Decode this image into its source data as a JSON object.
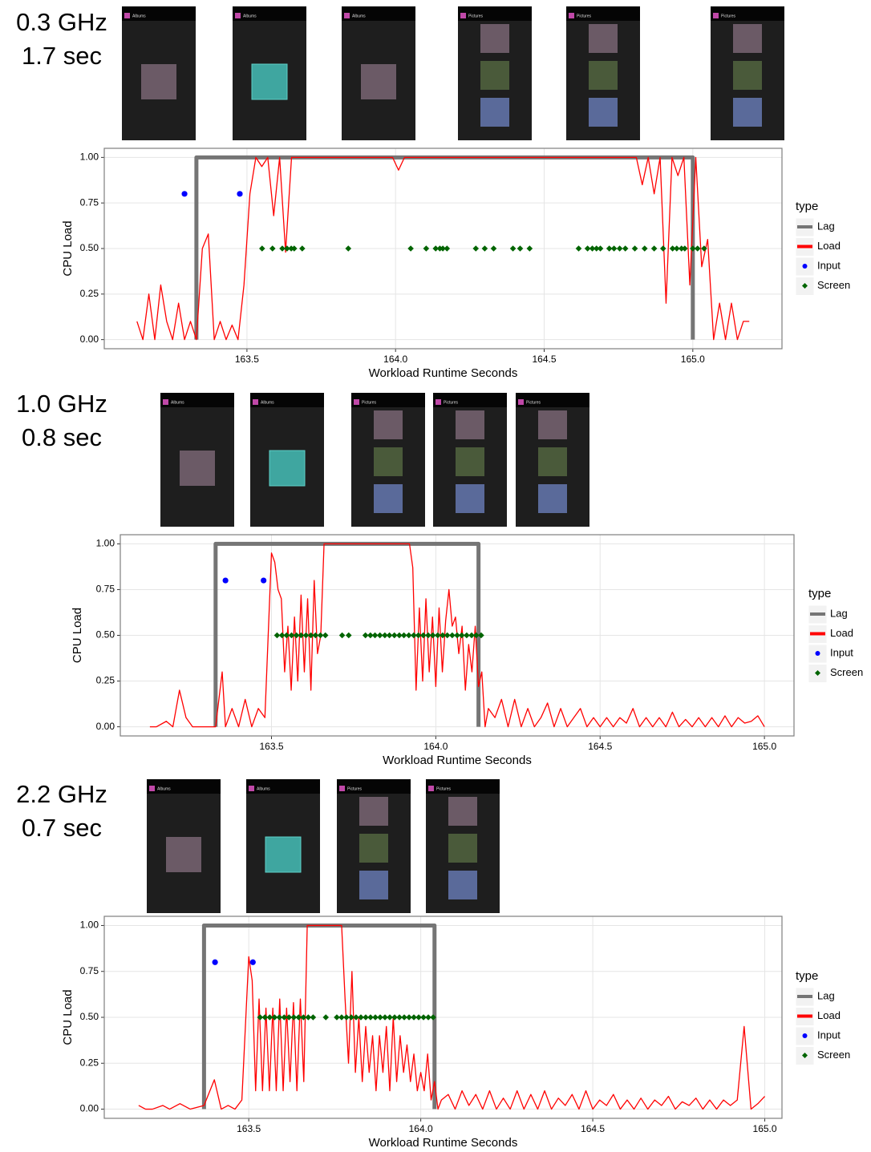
{
  "chart_data": [
    {
      "type": "line",
      "title": "0.3 GHz",
      "subtitle": "1.7 sec",
      "screens": [
        "Albums",
        "Albums",
        "Albums",
        "Pictures",
        "Pictures",
        "Pictures"
      ],
      "xlabel": "Workload Runtime Seconds",
      "ylabel": "CPU Load",
      "legend_title": "type",
      "grid": true,
      "xlim": [
        163.02,
        165.3
      ],
      "ylim": [
        -0.05,
        1.05
      ],
      "xticks": [
        163.5,
        {
          "value": 164,
          "label": "164.0"
        },
        164.5,
        {
          "value": 165,
          "label": "165.0"
        }
      ],
      "yticks": [
        {
          "value": 0,
          "label": "0.00"
        },
        {
          "value": 0.25,
          "label": "0.25"
        },
        {
          "value": 0.5,
          "label": "0.50"
        },
        {
          "value": 0.75,
          "label": "0.75"
        },
        {
          "value": 1,
          "label": "1.00"
        }
      ],
      "series": [
        {
          "name": "Lag",
          "color": "#757575",
          "shape": "line",
          "x": [
            163.33,
            163.33,
            165.0,
            165.0
          ],
          "values": [
            0,
            1,
            1,
            0
          ]
        },
        {
          "name": "Load",
          "color": "#ff0000",
          "shape": "line",
          "x": [
            163.13,
            163.15,
            163.17,
            163.19,
            163.21,
            163.23,
            163.25,
            163.27,
            163.29,
            163.31,
            163.33,
            163.35,
            163.37,
            163.39,
            163.41,
            163.43,
            163.45,
            163.47,
            163.49,
            163.51,
            163.53,
            163.55,
            163.57,
            163.59,
            163.61,
            163.63,
            163.65,
            163.67,
            163.99,
            164.01,
            164.03,
            164.81,
            164.83,
            164.85,
            164.87,
            164.89,
            164.91,
            164.93,
            164.95,
            164.97,
            164.99,
            165.01,
            165.03,
            165.05,
            165.07,
            165.09,
            165.11,
            165.13,
            165.15,
            165.17,
            165.19
          ],
          "values": [
            0.1,
            0,
            0.25,
            0,
            0.3,
            0.1,
            0,
            0.2,
            0,
            0.1,
            0,
            0.5,
            0.58,
            0,
            0.1,
            0,
            0.08,
            0,
            0.3,
            0.8,
            1,
            0.95,
            1,
            0.68,
            1,
            0.48,
            1,
            1,
            1,
            0.93,
            1,
            1,
            0.85,
            1,
            0.8,
            1,
            0.2,
            1,
            0.9,
            1,
            0.3,
            1,
            0.4,
            0.55,
            0,
            0.2,
            0,
            0.2,
            0,
            0.1,
            0.1
          ]
        },
        {
          "name": "Input",
          "color": "#0000ff",
          "shape": "circle",
          "x": [
            163.29,
            163.476
          ],
          "values": [
            0.8,
            0.8
          ]
        },
        {
          "name": "Screen",
          "color": "#006400",
          "shape": "diamond",
          "x": [
            163.551,
            163.586,
            163.619,
            163.635,
            163.649,
            163.659,
            163.686,
            163.841,
            164.051,
            164.103,
            164.135,
            164.149,
            164.159,
            164.173,
            164.27,
            164.3,
            164.33,
            164.395,
            164.419,
            164.451,
            164.616,
            164.646,
            164.662,
            164.676,
            164.689,
            164.719,
            164.735,
            164.754,
            164.773,
            164.805,
            164.838,
            164.87,
            164.9,
            164.932,
            164.946,
            164.962,
            164.973,
            165.0,
            165.016,
            165.038
          ],
          "values": [
            0.5,
            0.5,
            0.5,
            0.5,
            0.5,
            0.5,
            0.5,
            0.5,
            0.5,
            0.5,
            0.5,
            0.5,
            0.5,
            0.5,
            0.5,
            0.5,
            0.5,
            0.5,
            0.5,
            0.5,
            0.5,
            0.5,
            0.5,
            0.5,
            0.5,
            0.5,
            0.5,
            0.5,
            0.5,
            0.5,
            0.5,
            0.5,
            0.5,
            0.5,
            0.5,
            0.5,
            0.5,
            0.5,
            0.5,
            0.5
          ]
        }
      ]
    },
    {
      "type": "line",
      "title": "1.0 GHz",
      "subtitle": "0.8 sec",
      "screens": [
        "Albums",
        "Albums",
        "Pictures",
        "Pictures",
        "Pictures"
      ],
      "xlabel": "Workload Runtime Seconds",
      "ylabel": "CPU Load",
      "legend_title": "type",
      "grid": true,
      "xlim": [
        163.04,
        165.09
      ],
      "ylim": [
        -0.05,
        1.05
      ],
      "xticks": [
        163.5,
        {
          "value": 164,
          "label": "164.0"
        },
        164.5,
        {
          "value": 165,
          "label": "165.0"
        }
      ],
      "yticks": [
        {
          "value": 0,
          "label": "0.00"
        },
        {
          "value": 0.25,
          "label": "0.25"
        },
        {
          "value": 0.5,
          "label": "0.50"
        },
        {
          "value": 0.75,
          "label": "0.75"
        },
        {
          "value": 1,
          "label": "1.00"
        }
      ],
      "series": [
        {
          "name": "Lag",
          "color": "#757575",
          "shape": "line",
          "x": [
            163.33,
            163.33,
            164.13,
            164.13
          ],
          "values": [
            0,
            1,
            1,
            0
          ]
        },
        {
          "name": "Load",
          "color": "#ff0000",
          "shape": "line",
          "x": [
            163.13,
            163.15,
            163.18,
            163.2,
            163.22,
            163.24,
            163.26,
            163.33,
            163.35,
            163.36,
            163.38,
            163.4,
            163.42,
            163.44,
            163.46,
            163.48,
            163.5,
            163.51,
            163.52,
            163.53,
            163.54,
            163.55,
            163.56,
            163.57,
            163.58,
            163.59,
            163.6,
            163.61,
            163.62,
            163.63,
            163.64,
            163.65,
            163.66,
            163.92,
            163.93,
            163.94,
            163.95,
            163.96,
            163.97,
            163.98,
            163.99,
            164.0,
            164.01,
            164.02,
            164.03,
            164.04,
            164.05,
            164.06,
            164.07,
            164.08,
            164.09,
            164.1,
            164.11,
            164.12,
            164.13,
            164.14,
            164.15,
            164.16,
            164.18,
            164.2,
            164.22,
            164.24,
            164.26,
            164.28,
            164.3,
            164.32,
            164.34,
            164.36,
            164.38,
            164.4,
            164.42,
            164.44,
            164.46,
            164.48,
            164.5,
            164.52,
            164.54,
            164.56,
            164.58,
            164.6,
            164.62,
            164.64,
            164.66,
            164.68,
            164.7,
            164.72,
            164.74,
            164.76,
            164.78,
            164.8,
            164.82,
            164.84,
            164.86,
            164.88,
            164.9,
            164.92,
            164.94,
            164.96,
            164.98,
            165.0
          ],
          "values": [
            0,
            0,
            0.03,
            0,
            0.2,
            0.05,
            0,
            0,
            0.3,
            0,
            0.1,
            0,
            0.15,
            0,
            0.1,
            0.05,
            0.95,
            0.9,
            0.75,
            0.7,
            0.3,
            0.55,
            0.2,
            0.6,
            0.25,
            0.72,
            0.3,
            0.7,
            0.2,
            0.8,
            0.4,
            0.5,
            1,
            1,
            0.87,
            0.2,
            0.65,
            0.25,
            0.7,
            0.3,
            0.6,
            0.22,
            0.65,
            0.3,
            0.58,
            0.75,
            0.55,
            0.6,
            0.4,
            0.55,
            0.2,
            0.45,
            0.3,
            0.55,
            0.22,
            0.3,
            0,
            0.1,
            0.05,
            0.15,
            0,
            0.15,
            0,
            0.1,
            0,
            0.05,
            0.13,
            0,
            0.1,
            0,
            0.05,
            0.1,
            0,
            0.05,
            0,
            0.05,
            0,
            0.05,
            0.02,
            0.1,
            0,
            0.05,
            0,
            0.05,
            0,
            0.08,
            0,
            0.04,
            0,
            0.05,
            0,
            0.05,
            0,
            0.06,
            0,
            0.05,
            0.02,
            0.03,
            0.06,
            0
          ]
        },
        {
          "name": "Input",
          "color": "#0000ff",
          "shape": "circle",
          "x": [
            163.36,
            163.476
          ],
          "values": [
            0.8,
            0.8
          ]
        },
        {
          "name": "Screen",
          "color": "#006400",
          "shape": "diamond",
          "x": [
            163.517,
            163.532,
            163.546,
            163.561,
            163.576,
            163.59,
            163.605,
            163.62,
            163.634,
            163.649,
            163.664,
            163.715,
            163.735,
            163.786,
            163.801,
            163.815,
            163.83,
            163.845,
            163.859,
            163.874,
            163.889,
            163.903,
            163.918,
            163.933,
            163.947,
            163.962,
            163.977,
            163.991,
            164.006,
            164.021,
            164.035,
            164.05,
            164.065,
            164.079,
            164.094,
            164.109,
            164.123,
            164.138
          ],
          "values": [
            0.5,
            0.5,
            0.5,
            0.5,
            0.5,
            0.5,
            0.5,
            0.5,
            0.5,
            0.5,
            0.5,
            0.5,
            0.5,
            0.5,
            0.5,
            0.5,
            0.5,
            0.5,
            0.5,
            0.5,
            0.5,
            0.5,
            0.5,
            0.5,
            0.5,
            0.5,
            0.5,
            0.5,
            0.5,
            0.5,
            0.5,
            0.5,
            0.5,
            0.5,
            0.5,
            0.5,
            0.5,
            0.5
          ]
        }
      ]
    },
    {
      "type": "line",
      "title": "2.2 GHz",
      "subtitle": "0.7 sec",
      "screens": [
        "Albums",
        "Albums",
        "Pictures",
        "Pictures"
      ],
      "xlabel": "Workload Runtime Seconds",
      "ylabel": "CPU Load",
      "legend_title": "type",
      "grid": true,
      "xlim": [
        163.08,
        165.05
      ],
      "ylim": [
        -0.05,
        1.05
      ],
      "xticks": [
        163.5,
        {
          "value": 164,
          "label": "164.0"
        },
        164.5,
        {
          "value": 165,
          "label": "165.0"
        }
      ],
      "yticks": [
        {
          "value": 0,
          "label": "0.00"
        },
        {
          "value": 0.25,
          "label": "0.25"
        },
        {
          "value": 0.5,
          "label": "0.50"
        },
        {
          "value": 0.75,
          "label": "0.75"
        },
        {
          "value": 1,
          "label": "1.00"
        }
      ],
      "series": [
        {
          "name": "Lag",
          "color": "#757575",
          "shape": "line",
          "x": [
            163.37,
            163.37,
            164.04,
            164.04
          ],
          "values": [
            0,
            1,
            1,
            0
          ]
        },
        {
          "name": "Load",
          "color": "#ff0000",
          "shape": "line",
          "x": [
            163.18,
            163.2,
            163.22,
            163.25,
            163.27,
            163.3,
            163.33,
            163.37,
            163.4,
            163.42,
            163.44,
            163.46,
            163.48,
            163.5,
            163.51,
            163.52,
            163.53,
            163.54,
            163.55,
            163.56,
            163.57,
            163.58,
            163.59,
            163.6,
            163.61,
            163.62,
            163.63,
            163.64,
            163.65,
            163.66,
            163.67,
            163.77,
            163.78,
            163.79,
            163.8,
            163.81,
            163.82,
            163.83,
            163.84,
            163.85,
            163.86,
            163.87,
            163.88,
            163.89,
            163.9,
            163.91,
            163.92,
            163.93,
            163.94,
            163.95,
            163.96,
            163.97,
            163.98,
            163.99,
            164.0,
            164.01,
            164.02,
            164.03,
            164.04,
            164.05,
            164.06,
            164.08,
            164.1,
            164.12,
            164.14,
            164.16,
            164.18,
            164.2,
            164.22,
            164.24,
            164.26,
            164.28,
            164.3,
            164.32,
            164.34,
            164.36,
            164.38,
            164.4,
            164.42,
            164.44,
            164.46,
            164.48,
            164.5,
            164.52,
            164.54,
            164.56,
            164.58,
            164.6,
            164.62,
            164.64,
            164.66,
            164.68,
            164.7,
            164.72,
            164.74,
            164.76,
            164.78,
            164.8,
            164.82,
            164.84,
            164.86,
            164.88,
            164.9,
            164.92,
            164.94,
            164.96,
            164.98,
            165.0
          ],
          "values": [
            0.02,
            0,
            0,
            0.02,
            0,
            0.03,
            0,
            0.02,
            0.16,
            0,
            0.02,
            0,
            0.05,
            0.83,
            0.7,
            0.1,
            0.6,
            0.1,
            0.55,
            0.1,
            0.55,
            0.1,
            0.6,
            0.1,
            0.55,
            0.15,
            0.58,
            0.1,
            0.6,
            0.15,
            1,
            1,
            0.6,
            0.25,
            0.75,
            0.2,
            0.5,
            0.15,
            0.45,
            0.2,
            0.4,
            0.1,
            0.4,
            0.2,
            0.45,
            0.1,
            0.5,
            0.15,
            0.4,
            0.2,
            0.35,
            0.15,
            0.3,
            0.1,
            0.2,
            0.1,
            0.3,
            0.05,
            0.15,
            0,
            0.05,
            0.08,
            0,
            0.1,
            0.02,
            0.08,
            0,
            0.1,
            0,
            0.06,
            0,
            0.1,
            0,
            0.08,
            0,
            0.1,
            0,
            0.06,
            0.02,
            0.08,
            0,
            0.1,
            0,
            0.05,
            0.02,
            0.08,
            0,
            0.05,
            0,
            0.06,
            0,
            0.05,
            0.02,
            0.07,
            0,
            0.04,
            0.02,
            0.06,
            0,
            0.05,
            0,
            0.05,
            0.02,
            0.05,
            0.45,
            0,
            0.03,
            0.07
          ]
        },
        {
          "name": "Input",
          "color": "#0000ff",
          "shape": "circle",
          "x": [
            163.402,
            163.512
          ],
          "values": [
            0.8,
            0.8
          ]
        },
        {
          "name": "Screen",
          "color": "#006400",
          "shape": "diamond",
          "x": [
            163.533,
            163.547,
            163.561,
            163.575,
            163.589,
            163.603,
            163.617,
            163.631,
            163.645,
            163.659,
            163.673,
            163.687,
            163.724,
            163.756,
            163.77,
            163.784,
            163.798,
            163.812,
            163.826,
            163.84,
            163.854,
            163.868,
            163.882,
            163.896,
            163.91,
            163.924,
            163.938,
            163.952,
            163.966,
            163.98,
            163.994,
            164.008,
            164.022,
            164.036
          ],
          "values": [
            0.5,
            0.5,
            0.5,
            0.5,
            0.5,
            0.5,
            0.5,
            0.5,
            0.5,
            0.5,
            0.5,
            0.5,
            0.5,
            0.5,
            0.5,
            0.5,
            0.5,
            0.5,
            0.5,
            0.5,
            0.5,
            0.5,
            0.5,
            0.5,
            0.5,
            0.5,
            0.5,
            0.5,
            0.5,
            0.5,
            0.5,
            0.5,
            0.5,
            0.5
          ]
        }
      ]
    }
  ]
}
